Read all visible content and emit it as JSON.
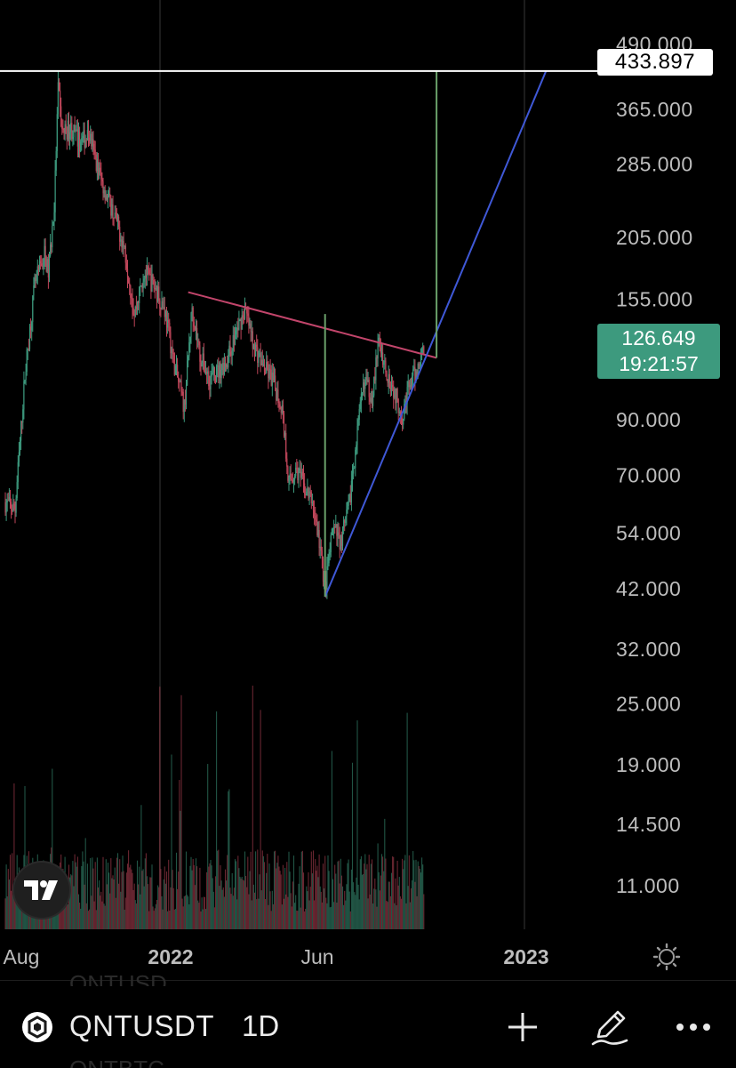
{
  "chart_data": {
    "type": "candlestick",
    "scale": "log",
    "symbol": "QNTUSDT",
    "timeframe": "1D",
    "price_axis": {
      "ticks": [
        "490.000",
        "365.000",
        "285.000",
        "205.000",
        "155.000",
        "90.000",
        "70.000",
        "54.000",
        "42.000",
        "32.000",
        "25.000",
        "19.000",
        "14.500",
        "11.000"
      ]
    },
    "time_axis": {
      "labels": [
        {
          "text": "Aug",
          "bold": false
        },
        {
          "text": "2022",
          "bold": true
        },
        {
          "text": "Jun",
          "bold": false
        },
        {
          "text": "2023",
          "bold": true
        }
      ]
    },
    "horizontal_line_price": "433.897",
    "last_price": "126.649",
    "countdown": "19:21:57",
    "ohlc_series": [
      {
        "d": "2021-07-26",
        "p": 62
      },
      {
        "d": "2021-08-05",
        "p": 60
      },
      {
        "d": "2021-08-15",
        "p": 110
      },
      {
        "d": "2021-08-25",
        "p": 165
      },
      {
        "d": "2021-09-04",
        "p": 190
      },
      {
        "d": "2021-09-08",
        "p": 175
      },
      {
        "d": "2021-09-14",
        "p": 235
      },
      {
        "d": "2021-09-18",
        "p": 400
      },
      {
        "d": "2021-09-22",
        "p": 330
      },
      {
        "d": "2021-10-01",
        "p": 335
      },
      {
        "d": "2021-10-10",
        "p": 315
      },
      {
        "d": "2021-10-20",
        "p": 325
      },
      {
        "d": "2021-11-01",
        "p": 265
      },
      {
        "d": "2021-11-15",
        "p": 225
      },
      {
        "d": "2021-11-25",
        "p": 195
      },
      {
        "d": "2021-12-05",
        "p": 145
      },
      {
        "d": "2021-12-15",
        "p": 175
      },
      {
        "d": "2021-12-25",
        "p": 165
      },
      {
        "d": "2022-01-05",
        "p": 148
      },
      {
        "d": "2022-01-15",
        "p": 115
      },
      {
        "d": "2022-01-25",
        "p": 95
      },
      {
        "d": "2022-02-02",
        "p": 150
      },
      {
        "d": "2022-02-10",
        "p": 120
      },
      {
        "d": "2022-02-20",
        "p": 108
      },
      {
        "d": "2022-03-01",
        "p": 112
      },
      {
        "d": "2022-03-10",
        "p": 118
      },
      {
        "d": "2022-03-20",
        "p": 135
      },
      {
        "d": "2022-03-28",
        "p": 148
      },
      {
        "d": "2022-04-05",
        "p": 128
      },
      {
        "d": "2022-04-15",
        "p": 115
      },
      {
        "d": "2022-04-25",
        "p": 108
      },
      {
        "d": "2022-05-05",
        "p": 95
      },
      {
        "d": "2022-05-12",
        "p": 68
      },
      {
        "d": "2022-05-20",
        "p": 72
      },
      {
        "d": "2022-05-28",
        "p": 66
      },
      {
        "d": "2022-06-05",
        "p": 62
      },
      {
        "d": "2022-06-12",
        "p": 52
      },
      {
        "d": "2022-06-18",
        "p": 42
      },
      {
        "d": "2022-06-26",
        "p": 55
      },
      {
        "d": "2022-07-04",
        "p": 52
      },
      {
        "d": "2022-07-12",
        "p": 60
      },
      {
        "d": "2022-07-20",
        "p": 82
      },
      {
        "d": "2022-07-28",
        "p": 108
      },
      {
        "d": "2022-08-05",
        "p": 100
      },
      {
        "d": "2022-08-12",
        "p": 128
      },
      {
        "d": "2022-08-20",
        "p": 112
      },
      {
        "d": "2022-08-28",
        "p": 102
      },
      {
        "d": "2022-09-05",
        "p": 92
      },
      {
        "d": "2022-09-12",
        "p": 105
      },
      {
        "d": "2022-09-20",
        "p": 112
      },
      {
        "d": "2022-09-28",
        "p": 126.649
      }
    ],
    "annotations": [
      {
        "type": "trendline",
        "name": "descending-resistance",
        "color": "#c2456b",
        "points": [
          {
            "d": "2022-01-29",
            "p": 160
          },
          {
            "d": "2022-10-10",
            "p": 119
          }
        ]
      },
      {
        "type": "trendline",
        "name": "ascending-support",
        "color": "#3f58d6",
        "points": [
          {
            "d": "2022-06-18",
            "p": 40.5
          },
          {
            "d": "2023-01-30",
            "p": 433.897
          }
        ]
      },
      {
        "type": "vertical-range",
        "name": "flagpole",
        "color": "#6aa06a",
        "x": "2022-06-18",
        "from": 40.5,
        "to": 145
      },
      {
        "type": "vertical-range",
        "name": "target",
        "color": "#6aa06a",
        "x": "2022-10-10",
        "from": 119,
        "to": 433.897
      }
    ]
  },
  "bottom_bar": {
    "ghost_above": "QNTUSD",
    "ghost_below": "QNTBTC",
    "symbol": "QNTUSDT",
    "timeframe": "1D"
  },
  "colors": {
    "up": "#3d9a7e",
    "down": "#c0465a",
    "background": "#000000"
  }
}
